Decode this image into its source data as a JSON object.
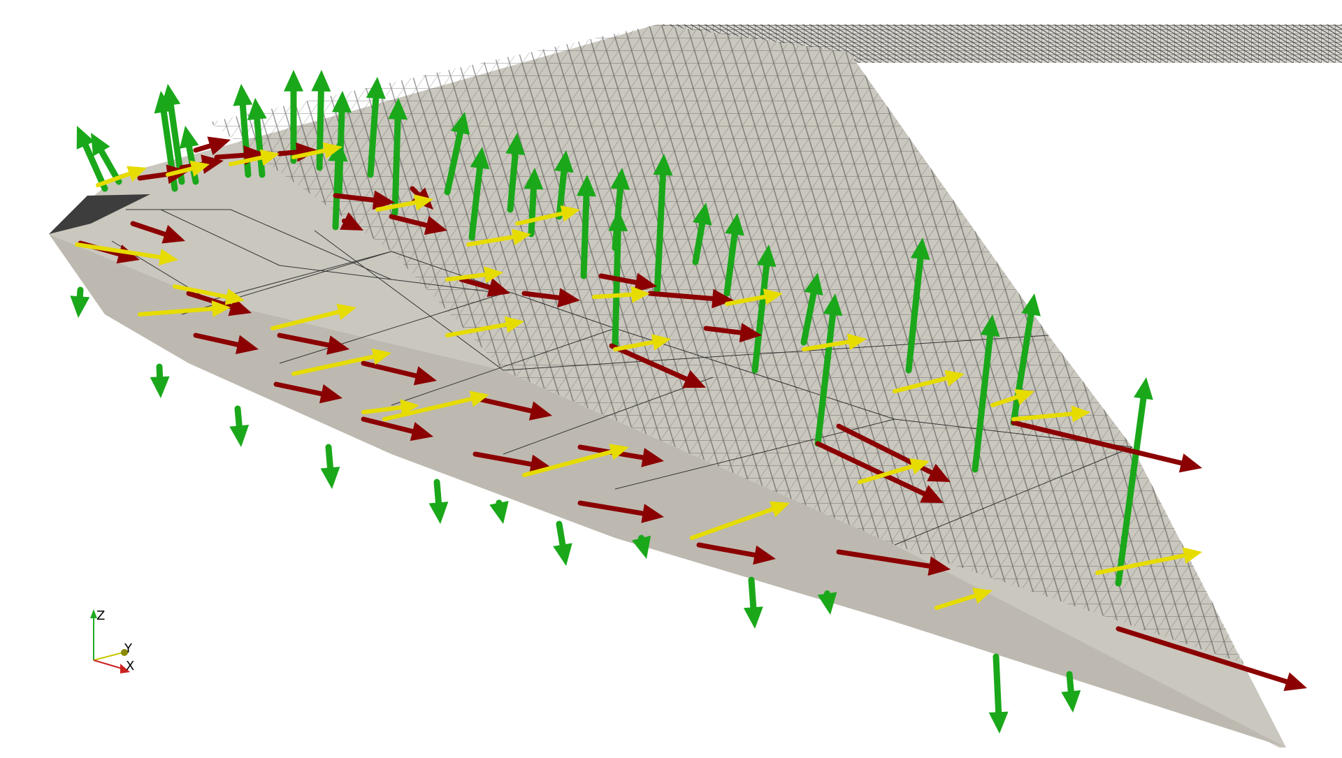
{
  "viewport": {
    "background": "#ffffff",
    "mesh_surface_color": "#c9c6bd",
    "mesh_surface_shade": "#b9b6ad",
    "mesh_edge_color": "#222222",
    "dark_patch_color": "#3a3a3a"
  },
  "glyphs": {
    "normal_color": "#1aa81a",
    "tangent_u_color": "#8b0000",
    "tangent_v_color": "#e6dc00"
  },
  "orientation_axes": {
    "z_label": "Z",
    "y_label": "Y",
    "x_label": "X",
    "z_color": "#22aa22",
    "y_color": "#c8c800",
    "x_color": "#cc2222"
  }
}
